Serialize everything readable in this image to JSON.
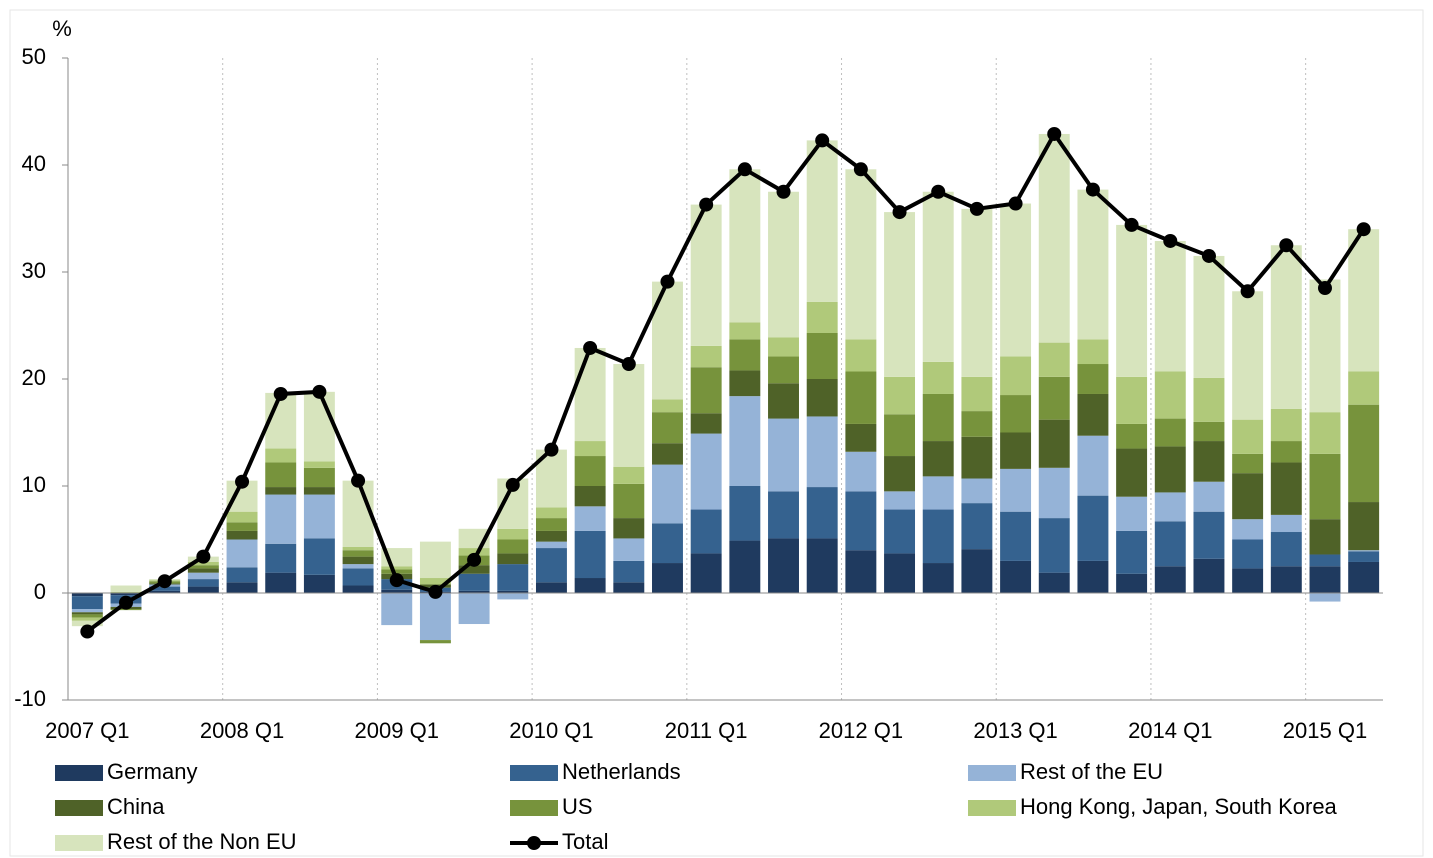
{
  "chart_data": {
    "type": "bar",
    "y_label": "%",
    "categories": [
      "2007 Q1",
      null,
      null,
      null,
      "2008 Q1",
      null,
      null,
      null,
      "2009 Q1",
      null,
      null,
      null,
      "2010 Q1",
      null,
      null,
      null,
      "2011 Q1",
      null,
      null,
      null,
      "2012 Q1",
      null,
      null,
      null,
      "2013 Q1",
      null,
      null,
      null,
      "2014 Q1",
      null,
      null,
      null,
      "2015 Q1",
      null
    ],
    "ylim": [
      -10,
      50
    ],
    "yticks": [
      -10,
      0,
      10,
      20,
      30,
      40,
      50
    ],
    "series": [
      {
        "name": "Germany",
        "color": "#1f3a5f",
        "values": [
          -0.3,
          -0.2,
          0.2,
          0.6,
          1.0,
          1.9,
          1.7,
          0.7,
          0.3,
          0.1,
          0.2,
          0.2,
          1.0,
          1.4,
          1.0,
          2.8,
          3.7,
          4.9,
          5.1,
          5.1,
          4.0,
          3.7,
          2.8,
          4.1,
          3.0,
          1.9,
          3.0,
          1.8,
          2.5,
          3.2,
          2.3,
          2.5,
          2.5,
          2.9
        ]
      },
      {
        "name": "Netherlands",
        "color": "#35628f",
        "values": [
          -1.2,
          -0.8,
          0.4,
          0.7,
          1.4,
          2.7,
          3.4,
          1.6,
          1.0,
          0.4,
          1.6,
          2.5,
          3.2,
          4.4,
          2.0,
          3.7,
          4.1,
          5.1,
          4.4,
          4.8,
          5.5,
          4.1,
          5.0,
          4.3,
          4.6,
          5.1,
          6.1,
          4.0,
          4.2,
          4.4,
          2.7,
          3.2,
          1.1,
          1.0
        ]
      },
      {
        "name": "Rest of the EU",
        "color": "#95b3d7",
        "values": [
          -0.3,
          -0.3,
          0.2,
          0.6,
          2.6,
          4.6,
          4.1,
          0.4,
          -3.0,
          -4.4,
          -2.9,
          -0.6,
          0.6,
          2.3,
          2.1,
          5.5,
          7.1,
          8.4,
          6.8,
          6.6,
          3.7,
          1.7,
          3.1,
          2.3,
          4.0,
          4.7,
          5.6,
          3.2,
          2.7,
          2.8,
          1.9,
          1.6,
          -0.8,
          0.1
        ]
      },
      {
        "name": "China",
        "color": "#4f6228",
        "values": [
          -0.2,
          -0.2,
          0.1,
          0.4,
          0.8,
          0.7,
          0.7,
          0.7,
          0.5,
          0.3,
          0.8,
          1.0,
          1.0,
          1.9,
          1.9,
          2.0,
          1.9,
          2.4,
          3.3,
          3.5,
          2.6,
          3.3,
          3.3,
          3.9,
          3.4,
          4.5,
          3.9,
          4.5,
          4.3,
          3.8,
          4.3,
          4.9,
          3.3,
          4.5
        ]
      },
      {
        "name": "US",
        "color": "#77933c",
        "values": [
          -0.3,
          -0.1,
          0.2,
          0.3,
          0.8,
          2.3,
          1.8,
          0.6,
          0.4,
          -0.3,
          0.9,
          1.3,
          1.2,
          2.8,
          3.2,
          2.9,
          4.3,
          2.9,
          2.5,
          4.3,
          4.9,
          3.9,
          4.4,
          2.4,
          3.5,
          4.0,
          2.8,
          2.3,
          2.6,
          1.8,
          1.8,
          2.0,
          6.1,
          9.1
        ]
      },
      {
        "name": "Hong Kong, Japan, South Korea",
        "color": "#b0c97a",
        "values": [
          -0.3,
          0.1,
          0.1,
          0.3,
          1.0,
          1.3,
          0.6,
          0.3,
          0.3,
          0.6,
          0.7,
          1.0,
          1.0,
          1.4,
          1.6,
          1.2,
          2.0,
          1.6,
          1.8,
          2.9,
          3.0,
          3.5,
          3.0,
          3.2,
          3.6,
          3.2,
          2.3,
          4.4,
          4.4,
          4.1,
          3.2,
          3.0,
          3.9,
          3.1
        ]
      },
      {
        "name": "Rest of the Non EU",
        "color": "#d7e4bd",
        "values": [
          -0.5,
          0.6,
          0.1,
          0.5,
          2.9,
          5.2,
          6.5,
          6.2,
          1.7,
          3.4,
          1.8,
          4.7,
          5.4,
          8.7,
          9.6,
          11.0,
          13.2,
          14.3,
          13.6,
          15.1,
          15.9,
          15.4,
          15.9,
          15.7,
          14.3,
          19.5,
          14.0,
          14.2,
          12.2,
          11.4,
          12.0,
          15.3,
          12.4,
          13.3
        ]
      },
      {
        "name": "Total",
        "color": "#000000",
        "type": "line",
        "values": [
          -3.6,
          -0.9,
          1.1,
          3.4,
          10.4,
          18.6,
          18.8,
          10.5,
          1.2,
          0.1,
          3.1,
          10.1,
          13.4,
          22.9,
          21.4,
          29.1,
          36.3,
          39.6,
          37.5,
          42.3,
          39.6,
          35.6,
          37.5,
          35.9,
          36.4,
          42.9,
          37.7,
          34.4,
          32.9,
          31.5,
          28.2,
          32.5,
          28.5,
          34.0
        ]
      }
    ]
  }
}
